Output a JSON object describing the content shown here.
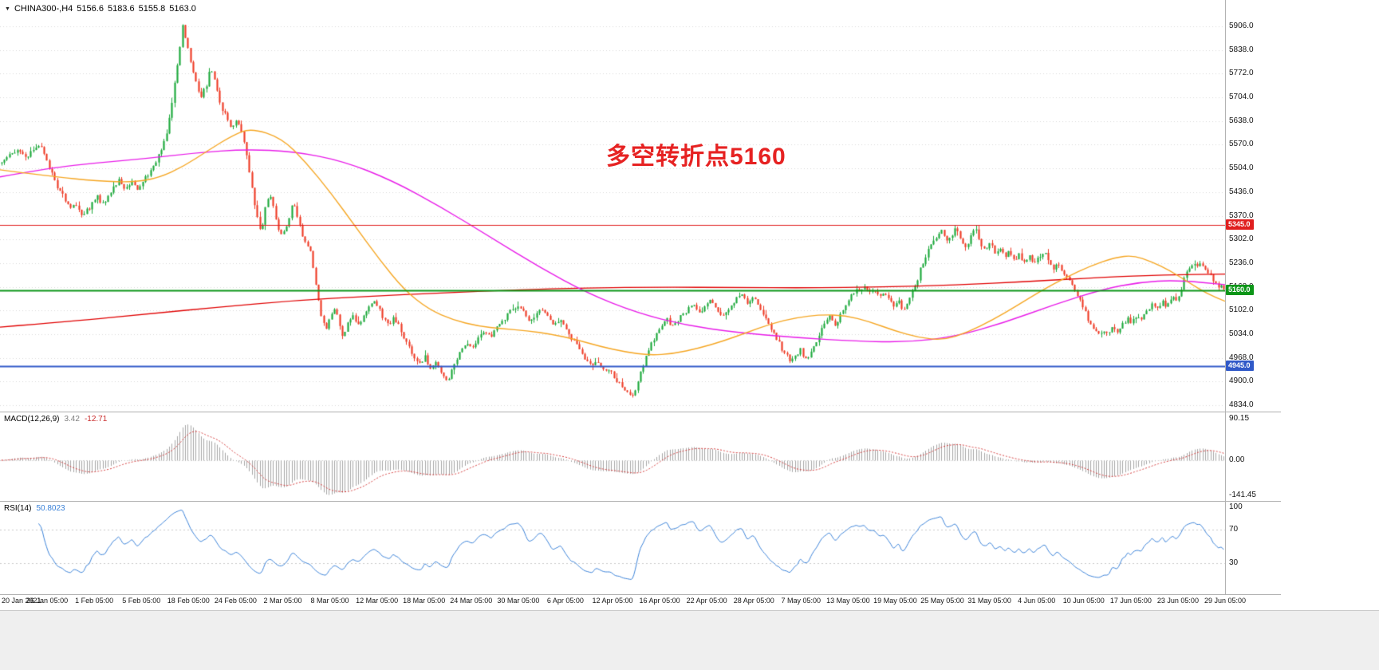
{
  "symbol_bar": {
    "symbol": "CHINA300-,H4",
    "open": "5156.6",
    "high": "5183.6",
    "low": "5155.8",
    "close": "5163.0"
  },
  "icons": {
    "symbol_marker": "▼"
  },
  "annotation": {
    "text": "多空转折点5160",
    "color": "#e62222"
  },
  "chart_data": {
    "type": "candlestick",
    "title": "CHINA300-,H4",
    "timeframe": "H4",
    "bars": 460,
    "candle_up_color": "#1ba83a",
    "candle_down_color": "#ee3b26",
    "y_axis": {
      "ticks": [
        "5906.0",
        "5838.0",
        "5772.0",
        "5704.0",
        "5638.0",
        "5570.0",
        "5504.0",
        "5436.0",
        "5370.0",
        "5302.0",
        "5236.0",
        "5168.0",
        "5102.0",
        "5034.0",
        "4968.0",
        "4900.0",
        "4834.0"
      ]
    },
    "x_labels": [
      "20 Jan 2021",
      "26 Jan 05:00",
      "1 Feb 05:00",
      "5 Feb 05:00",
      "18 Feb 05:00",
      "24 Feb 05:00",
      "2 Mar 05:00",
      "8 Mar 05:00",
      "12 Mar 05:00",
      "18 Mar 05:00",
      "24 Mar 05:00",
      "30 Mar 05:00",
      "6 Apr 05:00",
      "12 Apr 05:00",
      "16 Apr 05:00",
      "22 Apr 05:00",
      "28 Apr 05:00",
      "7 May 05:00",
      "13 May 05:00",
      "19 May 05:00",
      "25 May 05:00",
      "31 May 05:00",
      "4 Jun 05:00",
      "10 Jun 05:00",
      "17 Jun 05:00",
      "23 Jun 05:00",
      "29 Jun 05:00"
    ],
    "hlines": [
      {
        "price": 5345.0,
        "label": "5345.0",
        "color": "#e01f1f",
        "width": 1
      },
      {
        "price": 5160.0,
        "label": "5160.0",
        "color": "#0c9618",
        "width": 2
      },
      {
        "price": 4945.0,
        "label": "4945.0",
        "color": "#3059c8",
        "width": 2
      }
    ],
    "price_path": [
      [
        0,
        5520
      ],
      [
        0.008,
        5545
      ],
      [
        0.014,
        5560
      ],
      [
        0.02,
        5530
      ],
      [
        0.026,
        5555
      ],
      [
        0.031,
        5570
      ],
      [
        0.036,
        5540
      ],
      [
        0.04,
        5500
      ],
      [
        0.045,
        5455
      ],
      [
        0.051,
        5420
      ],
      [
        0.056,
        5390
      ],
      [
        0.061,
        5405
      ],
      [
        0.066,
        5370
      ],
      [
        0.072,
        5390
      ],
      [
        0.078,
        5425
      ],
      [
        0.084,
        5400
      ],
      [
        0.09,
        5440
      ],
      [
        0.096,
        5470
      ],
      [
        0.101,
        5445
      ],
      [
        0.106,
        5465
      ],
      [
        0.111,
        5440
      ],
      [
        0.116,
        5470
      ],
      [
        0.121,
        5495
      ],
      [
        0.126,
        5520
      ],
      [
        0.131,
        5560
      ],
      [
        0.136,
        5620
      ],
      [
        0.14,
        5700
      ],
      [
        0.144,
        5800
      ],
      [
        0.148,
        5905
      ],
      [
        0.153,
        5830
      ],
      [
        0.158,
        5760
      ],
      [
        0.163,
        5705
      ],
      [
        0.168,
        5740
      ],
      [
        0.171,
        5790
      ],
      [
        0.175,
        5745
      ],
      [
        0.179,
        5690
      ],
      [
        0.183,
        5655
      ],
      [
        0.188,
        5620
      ],
      [
        0.192,
        5640
      ],
      [
        0.196,
        5610
      ],
      [
        0.2,
        5550
      ],
      [
        0.204,
        5470
      ],
      [
        0.208,
        5380
      ],
      [
        0.212,
        5320
      ],
      [
        0.216,
        5400
      ],
      [
        0.22,
        5430
      ],
      [
        0.225,
        5350
      ],
      [
        0.229,
        5310
      ],
      [
        0.234,
        5345
      ],
      [
        0.238,
        5400
      ],
      [
        0.241,
        5380
      ],
      [
        0.245,
        5330
      ],
      [
        0.249,
        5290
      ],
      [
        0.253,
        5270
      ],
      [
        0.257,
        5180
      ],
      [
        0.261,
        5090
      ],
      [
        0.265,
        5050
      ],
      [
        0.269,
        5080
      ],
      [
        0.272,
        5110
      ],
      [
        0.276,
        5070
      ],
      [
        0.279,
        5030
      ],
      [
        0.283,
        5060
      ],
      [
        0.287,
        5090
      ],
      [
        0.291,
        5060
      ],
      [
        0.295,
        5080
      ],
      [
        0.3,
        5110
      ],
      [
        0.305,
        5130
      ],
      [
        0.311,
        5090
      ],
      [
        0.316,
        5060
      ],
      [
        0.321,
        5080
      ],
      [
        0.326,
        5050
      ],
      [
        0.331,
        5010
      ],
      [
        0.336,
        4980
      ],
      [
        0.341,
        4950
      ],
      [
        0.346,
        4970
      ],
      [
        0.351,
        4935
      ],
      [
        0.356,
        4960
      ],
      [
        0.36,
        4920
      ],
      [
        0.365,
        4900
      ],
      [
        0.37,
        4950
      ],
      [
        0.375,
        4985
      ],
      [
        0.38,
        5010
      ],
      [
        0.385,
        4990
      ],
      [
        0.39,
        5025
      ],
      [
        0.395,
        5045
      ],
      [
        0.4,
        5030
      ],
      [
        0.405,
        5055
      ],
      [
        0.41,
        5075
      ],
      [
        0.415,
        5095
      ],
      [
        0.42,
        5110
      ],
      [
        0.423,
        5120
      ],
      [
        0.427,
        5095
      ],
      [
        0.432,
        5070
      ],
      [
        0.437,
        5090
      ],
      [
        0.442,
        5110
      ],
      [
        0.447,
        5085
      ],
      [
        0.452,
        5060
      ],
      [
        0.457,
        5075
      ],
      [
        0.462,
        5050
      ],
      [
        0.467,
        5020
      ],
      [
        0.472,
        4995
      ],
      [
        0.477,
        4970
      ],
      [
        0.482,
        4945
      ],
      [
        0.487,
        4960
      ],
      [
        0.492,
        4935
      ],
      [
        0.497,
        4940
      ],
      [
        0.502,
        4910
      ],
      [
        0.507,
        4890
      ],
      [
        0.512,
        4870
      ],
      [
        0.516,
        4860
      ],
      [
        0.52,
        4895
      ],
      [
        0.524,
        4940
      ],
      [
        0.528,
        4975
      ],
      [
        0.532,
        5010
      ],
      [
        0.536,
        5040
      ],
      [
        0.54,
        5060
      ],
      [
        0.545,
        5075
      ],
      [
        0.55,
        5055
      ],
      [
        0.555,
        5080
      ],
      [
        0.56,
        5100
      ],
      [
        0.565,
        5120
      ],
      [
        0.57,
        5095
      ],
      [
        0.575,
        5110
      ],
      [
        0.58,
        5130
      ],
      [
        0.585,
        5105
      ],
      [
        0.59,
        5085
      ],
      [
        0.595,
        5110
      ],
      [
        0.6,
        5130
      ],
      [
        0.605,
        5150
      ],
      [
        0.61,
        5125
      ],
      [
        0.615,
        5140
      ],
      [
        0.62,
        5110
      ],
      [
        0.625,
        5080
      ],
      [
        0.63,
        5050
      ],
      [
        0.635,
        5015
      ],
      [
        0.64,
        4985
      ],
      [
        0.645,
        4960
      ],
      [
        0.65,
        4975
      ],
      [
        0.654,
        4995
      ],
      [
        0.658,
        4960
      ],
      [
        0.662,
        4985
      ],
      [
        0.666,
        5010
      ],
      [
        0.67,
        5040
      ],
      [
        0.674,
        5065
      ],
      [
        0.678,
        5090
      ],
      [
        0.682,
        5060
      ],
      [
        0.686,
        5085
      ],
      [
        0.69,
        5110
      ],
      [
        0.694,
        5140
      ],
      [
        0.698,
        5160
      ],
      [
        0.702,
        5150
      ],
      [
        0.706,
        5165
      ],
      [
        0.71,
        5150
      ],
      [
        0.714,
        5160
      ],
      [
        0.718,
        5140
      ],
      [
        0.722,
        5155
      ],
      [
        0.726,
        5130
      ],
      [
        0.73,
        5110
      ],
      [
        0.734,
        5130
      ],
      [
        0.738,
        5100
      ],
      [
        0.742,
        5125
      ],
      [
        0.746,
        5160
      ],
      [
        0.75,
        5200
      ],
      [
        0.755,
        5250
      ],
      [
        0.76,
        5290
      ],
      [
        0.765,
        5310
      ],
      [
        0.769,
        5330
      ],
      [
        0.773,
        5300
      ],
      [
        0.777,
        5315
      ],
      [
        0.781,
        5335
      ],
      [
        0.785,
        5300
      ],
      [
        0.789,
        5280
      ],
      [
        0.793,
        5310
      ],
      [
        0.797,
        5330
      ],
      [
        0.801,
        5290
      ],
      [
        0.805,
        5270
      ],
      [
        0.809,
        5295
      ],
      [
        0.813,
        5260
      ],
      [
        0.817,
        5280
      ],
      [
        0.821,
        5250
      ],
      [
        0.825,
        5270
      ],
      [
        0.829,
        5240
      ],
      [
        0.833,
        5260
      ],
      [
        0.837,
        5235
      ],
      [
        0.841,
        5255
      ],
      [
        0.845,
        5230
      ],
      [
        0.849,
        5250
      ],
      [
        0.853,
        5270
      ],
      [
        0.857,
        5240
      ],
      [
        0.861,
        5215
      ],
      [
        0.865,
        5235
      ],
      [
        0.869,
        5205
      ],
      [
        0.873,
        5185
      ],
      [
        0.877,
        5165
      ],
      [
        0.881,
        5140
      ],
      [
        0.885,
        5110
      ],
      [
        0.889,
        5075
      ],
      [
        0.893,
        5050
      ],
      [
        0.897,
        5035
      ],
      [
        0.901,
        5045
      ],
      [
        0.905,
        5030
      ],
      [
        0.909,
        5055
      ],
      [
        0.913,
        5040
      ],
      [
        0.917,
        5060
      ],
      [
        0.921,
        5080
      ],
      [
        0.925,
        5065
      ],
      [
        0.929,
        5090
      ],
      [
        0.933,
        5075
      ],
      [
        0.937,
        5100
      ],
      [
        0.941,
        5120
      ],
      [
        0.945,
        5105
      ],
      [
        0.949,
        5130
      ],
      [
        0.953,
        5115
      ],
      [
        0.957,
        5140
      ],
      [
        0.961,
        5125
      ],
      [
        0.965,
        5160
      ],
      [
        0.969,
        5210
      ],
      [
        0.973,
        5235
      ],
      [
        0.977,
        5225
      ],
      [
        0.981,
        5235
      ],
      [
        0.985,
        5215
      ],
      [
        0.989,
        5200
      ],
      [
        0.993,
        5180
      ],
      [
        0.997,
        5168
      ],
      [
        1,
        5163
      ]
    ],
    "moving_averages": [
      {
        "name": "slow-ma",
        "color": "#e00000",
        "width": 1.3,
        "points": [
          [
            0,
            5055
          ],
          [
            0.06,
            5072
          ],
          [
            0.12,
            5092
          ],
          [
            0.18,
            5112
          ],
          [
            0.24,
            5130
          ],
          [
            0.3,
            5142
          ],
          [
            0.36,
            5152
          ],
          [
            0.42,
            5160
          ],
          [
            0.48,
            5166
          ],
          [
            0.54,
            5168
          ],
          [
            0.6,
            5167
          ],
          [
            0.66,
            5166
          ],
          [
            0.72,
            5168
          ],
          [
            0.78,
            5174
          ],
          [
            0.84,
            5184
          ],
          [
            0.9,
            5196
          ],
          [
            0.95,
            5203
          ],
          [
            1,
            5205
          ]
        ]
      },
      {
        "name": "mid-ma",
        "color": "#e81ce8",
        "width": 1.4,
        "points": [
          [
            0,
            5480
          ],
          [
            0.04,
            5505
          ],
          [
            0.08,
            5520
          ],
          [
            0.12,
            5532
          ],
          [
            0.16,
            5548
          ],
          [
            0.2,
            5558
          ],
          [
            0.24,
            5552
          ],
          [
            0.28,
            5525
          ],
          [
            0.32,
            5470
          ],
          [
            0.36,
            5395
          ],
          [
            0.4,
            5310
          ],
          [
            0.44,
            5225
          ],
          [
            0.48,
            5150
          ],
          [
            0.52,
            5095
          ],
          [
            0.56,
            5060
          ],
          [
            0.6,
            5040
          ],
          [
            0.65,
            5025
          ],
          [
            0.7,
            5015
          ],
          [
            0.74,
            5012
          ],
          [
            0.78,
            5028
          ],
          [
            0.82,
            5068
          ],
          [
            0.86,
            5118
          ],
          [
            0.9,
            5162
          ],
          [
            0.93,
            5182
          ],
          [
            0.96,
            5188
          ],
          [
            1,
            5175
          ]
        ]
      },
      {
        "name": "fast-ma",
        "color": "#f5a623",
        "width": 1.4,
        "points": [
          [
            0,
            5500
          ],
          [
            0.04,
            5482
          ],
          [
            0.08,
            5468
          ],
          [
            0.11,
            5465
          ],
          [
            0.13,
            5478
          ],
          [
            0.15,
            5510
          ],
          [
            0.17,
            5555
          ],
          [
            0.19,
            5598
          ],
          [
            0.205,
            5618
          ],
          [
            0.23,
            5590
          ],
          [
            0.25,
            5520
          ],
          [
            0.27,
            5435
          ],
          [
            0.29,
            5340
          ],
          [
            0.31,
            5245
          ],
          [
            0.33,
            5160
          ],
          [
            0.35,
            5105
          ],
          [
            0.37,
            5075
          ],
          [
            0.39,
            5058
          ],
          [
            0.41,
            5050
          ],
          [
            0.43,
            5045
          ],
          [
            0.45,
            5035
          ],
          [
            0.47,
            5020
          ],
          [
            0.49,
            5000
          ],
          [
            0.51,
            4985
          ],
          [
            0.53,
            4975
          ],
          [
            0.55,
            4980
          ],
          [
            0.57,
            4995
          ],
          [
            0.59,
            5015
          ],
          [
            0.61,
            5040
          ],
          [
            0.63,
            5065
          ],
          [
            0.65,
            5082
          ],
          [
            0.67,
            5090
          ],
          [
            0.69,
            5088
          ],
          [
            0.71,
            5070
          ],
          [
            0.73,
            5045
          ],
          [
            0.75,
            5025
          ],
          [
            0.77,
            5018
          ],
          [
            0.79,
            5040
          ],
          [
            0.81,
            5075
          ],
          [
            0.83,
            5115
          ],
          [
            0.85,
            5158
          ],
          [
            0.87,
            5195
          ],
          [
            0.89,
            5228
          ],
          [
            0.91,
            5252
          ],
          [
            0.925,
            5258
          ],
          [
            0.94,
            5240
          ],
          [
            0.955,
            5215
          ],
          [
            0.97,
            5182
          ],
          [
            0.985,
            5150
          ],
          [
            1,
            5128
          ]
        ]
      }
    ],
    "macd": {
      "label": "MACD(12,26,9)",
      "value_main": "3.42",
      "value_signal": "-12.71",
      "fast": 12,
      "slow": 26,
      "signal": 9,
      "axis_labels": [
        "90.15",
        "0.00",
        "-141.45"
      ],
      "hist_color": "#a6a6a6",
      "signal_color": "#d23333"
    },
    "rsi": {
      "label": "RSI(14)",
      "value": "50.8023",
      "period": 14,
      "axis_labels": [
        "100",
        "70",
        "30"
      ],
      "levels": [
        70,
        30
      ],
      "color": "#3b82d8"
    }
  }
}
